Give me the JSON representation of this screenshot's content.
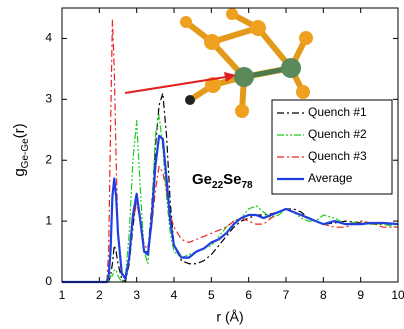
{
  "chart_data": {
    "type": "line",
    "xlabel": "r (Å)",
    "ylabel": {
      "main": "g",
      "sub": "Ge-Ge",
      "tail": "(r)"
    },
    "annotation": {
      "parts": [
        "Ge",
        "22",
        "Se",
        "78"
      ]
    },
    "x": [
      1,
      1.5,
      2.0,
      2.2,
      2.25,
      2.3,
      2.35,
      2.4,
      2.45,
      2.5,
      2.6,
      2.7,
      2.8,
      2.9,
      3.0,
      3.1,
      3.2,
      3.3,
      3.4,
      3.5,
      3.6,
      3.7,
      3.8,
      3.9,
      4.0,
      4.2,
      4.4,
      4.6,
      4.8,
      5.0,
      5.2,
      5.4,
      5.6,
      5.8,
      6.0,
      6.2,
      6.4,
      6.6,
      6.8,
      7.0,
      7.2,
      7.4,
      7.6,
      7.8,
      8.0,
      8.3,
      8.6,
      9.0,
      9.3,
      9.6,
      10
    ],
    "series": [
      {
        "name": "Quench #1",
        "color": "#000000",
        "style": "dashdot",
        "values": [
          0,
          0,
          0,
          0,
          0,
          0.1,
          0.3,
          0.6,
          0.5,
          0.3,
          0.05,
          0,
          0.3,
          0.9,
          1.4,
          1.0,
          0.5,
          0.5,
          1.2,
          2.2,
          2.9,
          3.1,
          2.4,
          1.3,
          0.6,
          0.35,
          0.3,
          0.3,
          0.35,
          0.45,
          0.6,
          0.75,
          0.9,
          1.0,
          1.05,
          1.1,
          1.1,
          1.12,
          1.15,
          1.2,
          1.2,
          1.15,
          1.05,
          1.0,
          0.95,
          0.97,
          1.0,
          0.97,
          0.95,
          0.95,
          0.95
        ]
      },
      {
        "name": "Quench #2",
        "color": "#22cc22",
        "style": "dashdotdot",
        "values": [
          0,
          0,
          0,
          0,
          0,
          0.1,
          0.1,
          0.2,
          0.2,
          0.1,
          0,
          0.1,
          0.8,
          2.0,
          2.65,
          1.5,
          0.5,
          0.3,
          1.0,
          2.4,
          2.75,
          2.2,
          1.4,
          0.8,
          0.5,
          0.4,
          0.45,
          0.5,
          0.55,
          0.6,
          0.75,
          0.9,
          1.0,
          1.05,
          1.2,
          1.25,
          1.15,
          1.05,
          1.1,
          1.2,
          1.15,
          1.05,
          1.0,
          1.0,
          1.1,
          1.05,
          0.95,
          1.0,
          0.95,
          0.95,
          0.9
        ]
      },
      {
        "name": "Quench #3",
        "color": "#ee2222",
        "style": "dashdot",
        "values": [
          0,
          0,
          0,
          0,
          0.5,
          2.5,
          4.3,
          3.5,
          2.0,
          0.8,
          0.1,
          0.1,
          0.4,
          1.0,
          1.3,
          1.0,
          0.6,
          0.55,
          0.9,
          1.5,
          1.9,
          1.8,
          1.5,
          1.1,
          0.9,
          0.7,
          0.65,
          0.7,
          0.75,
          0.8,
          0.85,
          0.9,
          1.0,
          1.05,
          1.0,
          0.95,
          0.95,
          1.05,
          1.15,
          1.2,
          1.15,
          1.1,
          1.05,
          1.0,
          0.95,
          0.9,
          0.9,
          1.0,
          0.97,
          0.9,
          0.9
        ]
      },
      {
        "name": "Average",
        "color": "#1f3fe0",
        "style": "solid",
        "values": [
          0,
          0,
          0,
          0,
          0.1,
          0.5,
          1.4,
          1.7,
          1.4,
          0.8,
          0.15,
          0.05,
          0.4,
          1.1,
          1.45,
          1.0,
          0.5,
          0.45,
          1.0,
          1.9,
          2.4,
          2.35,
          1.7,
          1.0,
          0.6,
          0.4,
          0.4,
          0.5,
          0.55,
          0.65,
          0.7,
          0.8,
          0.95,
          1.05,
          1.1,
          1.1,
          1.05,
          1.1,
          1.15,
          1.2,
          1.15,
          1.1,
          1.05,
          1.0,
          0.95,
          1.0,
          0.95,
          0.95,
          0.97,
          0.97,
          0.95
        ]
      }
    ],
    "xlim": [
      1,
      10
    ],
    "xticks": [
      1,
      2,
      3,
      4,
      5,
      6,
      7,
      8,
      9,
      10
    ],
    "ylim": [
      0,
      4.5
    ],
    "yticks": [
      0,
      1,
      2,
      3,
      4
    ],
    "grid": false,
    "legend": "right"
  }
}
